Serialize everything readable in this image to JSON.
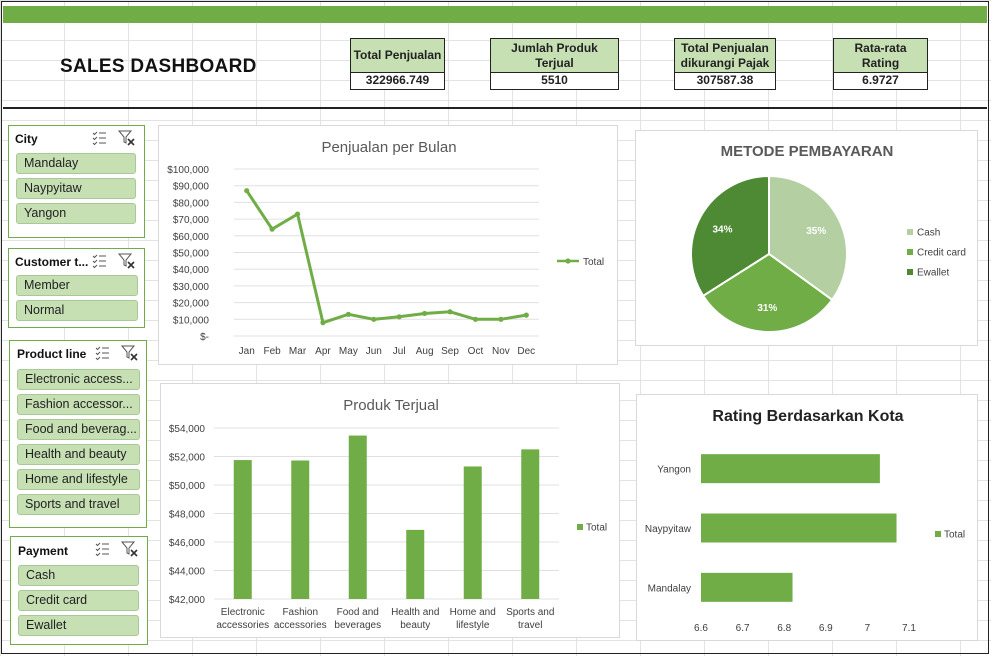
{
  "dashboard": {
    "title": "SALES DASHBOARD",
    "kpis": [
      {
        "label": "Total Penjualan",
        "value": "322966.749"
      },
      {
        "label": "Jumlah Produk Terjual",
        "value": "5510"
      },
      {
        "label": "Total Penjualan dikurangi Pajak",
        "value": "307587.38"
      },
      {
        "label": "Rata-rata Rating",
        "value": "6.9727"
      }
    ]
  },
  "slicers": {
    "city": {
      "title": "City",
      "items": [
        "Mandalay",
        "Naypyitaw",
        "Yangon"
      ]
    },
    "customer": {
      "title": "Customer t...",
      "items": [
        "Member",
        "Normal"
      ]
    },
    "product": {
      "title": "Product line",
      "items": [
        "Electronic access...",
        "Fashion accessor...",
        "Food and beverag...",
        "Health and beauty",
        "Home and lifestyle",
        "Sports and travel"
      ]
    },
    "payment": {
      "title": "Payment",
      "items": [
        "Cash",
        "Credit card",
        "Ewallet"
      ]
    },
    "icons": [
      "multi-select-icon",
      "clear-filter-icon"
    ]
  },
  "colors": {
    "accent": "#70ad47",
    "slicer_fill": "#c6e0b4",
    "pie_light": "#b4cfa2",
    "pie_mid": "#70ad47",
    "pie_dark": "#4e8a34"
  },
  "chart_data": [
    {
      "type": "line",
      "title": "Penjualan per Bulan",
      "categories": [
        "Jan",
        "Feb",
        "Mar",
        "Apr",
        "May",
        "Jun",
        "Jul",
        "Aug",
        "Sep",
        "Oct",
        "Nov",
        "Dec"
      ],
      "series": [
        {
          "name": "Total",
          "values": [
            87000,
            64000,
            73000,
            8000,
            13000,
            10000,
            11500,
            13500,
            14500,
            10000,
            10000,
            12500
          ]
        }
      ],
      "ylim": [
        0,
        100000
      ],
      "yticks": [
        "$-",
        "$10,000",
        "$20,000",
        "$30,000",
        "$40,000",
        "$50,000",
        "$60,000",
        "$70,000",
        "$80,000",
        "$90,000",
        "$100,000"
      ],
      "legend": "right"
    },
    {
      "type": "pie",
      "title": "METODE PEMBAYARAN",
      "categories": [
        "Cash",
        "Credit card",
        "Ewallet"
      ],
      "values": [
        35,
        31,
        34
      ],
      "labels": [
        "35%",
        "31%",
        "34%"
      ],
      "legend": "right"
    },
    {
      "type": "bar",
      "title": "Produk Terjual",
      "categories": [
        "Electronic accessories",
        "Fashion accessories",
        "Food and beverages",
        "Health and beauty",
        "Home and lifestyle",
        "Sports and travel"
      ],
      "series": [
        {
          "name": "Total",
          "values": [
            51750,
            51720,
            53470,
            46850,
            51300,
            52500
          ]
        }
      ],
      "ylim": [
        42000,
        54000
      ],
      "yticks": [
        "$42,000",
        "$44,000",
        "$46,000",
        "$48,000",
        "$50,000",
        "$52,000",
        "$54,000"
      ],
      "legend": "right"
    },
    {
      "type": "bar",
      "orientation": "horizontal",
      "title": "Rating Berdasarkan Kota",
      "categories": [
        "Yangon",
        "Naypyitaw",
        "Mandalay"
      ],
      "series": [
        {
          "name": "Total",
          "values": [
            7.03,
            7.07,
            6.82
          ]
        }
      ],
      "xlim": [
        6.6,
        7.1
      ],
      "xticks": [
        "6.6",
        "6.7",
        "6.8",
        "6.9",
        "7",
        "7.1"
      ],
      "legend": "right"
    }
  ]
}
